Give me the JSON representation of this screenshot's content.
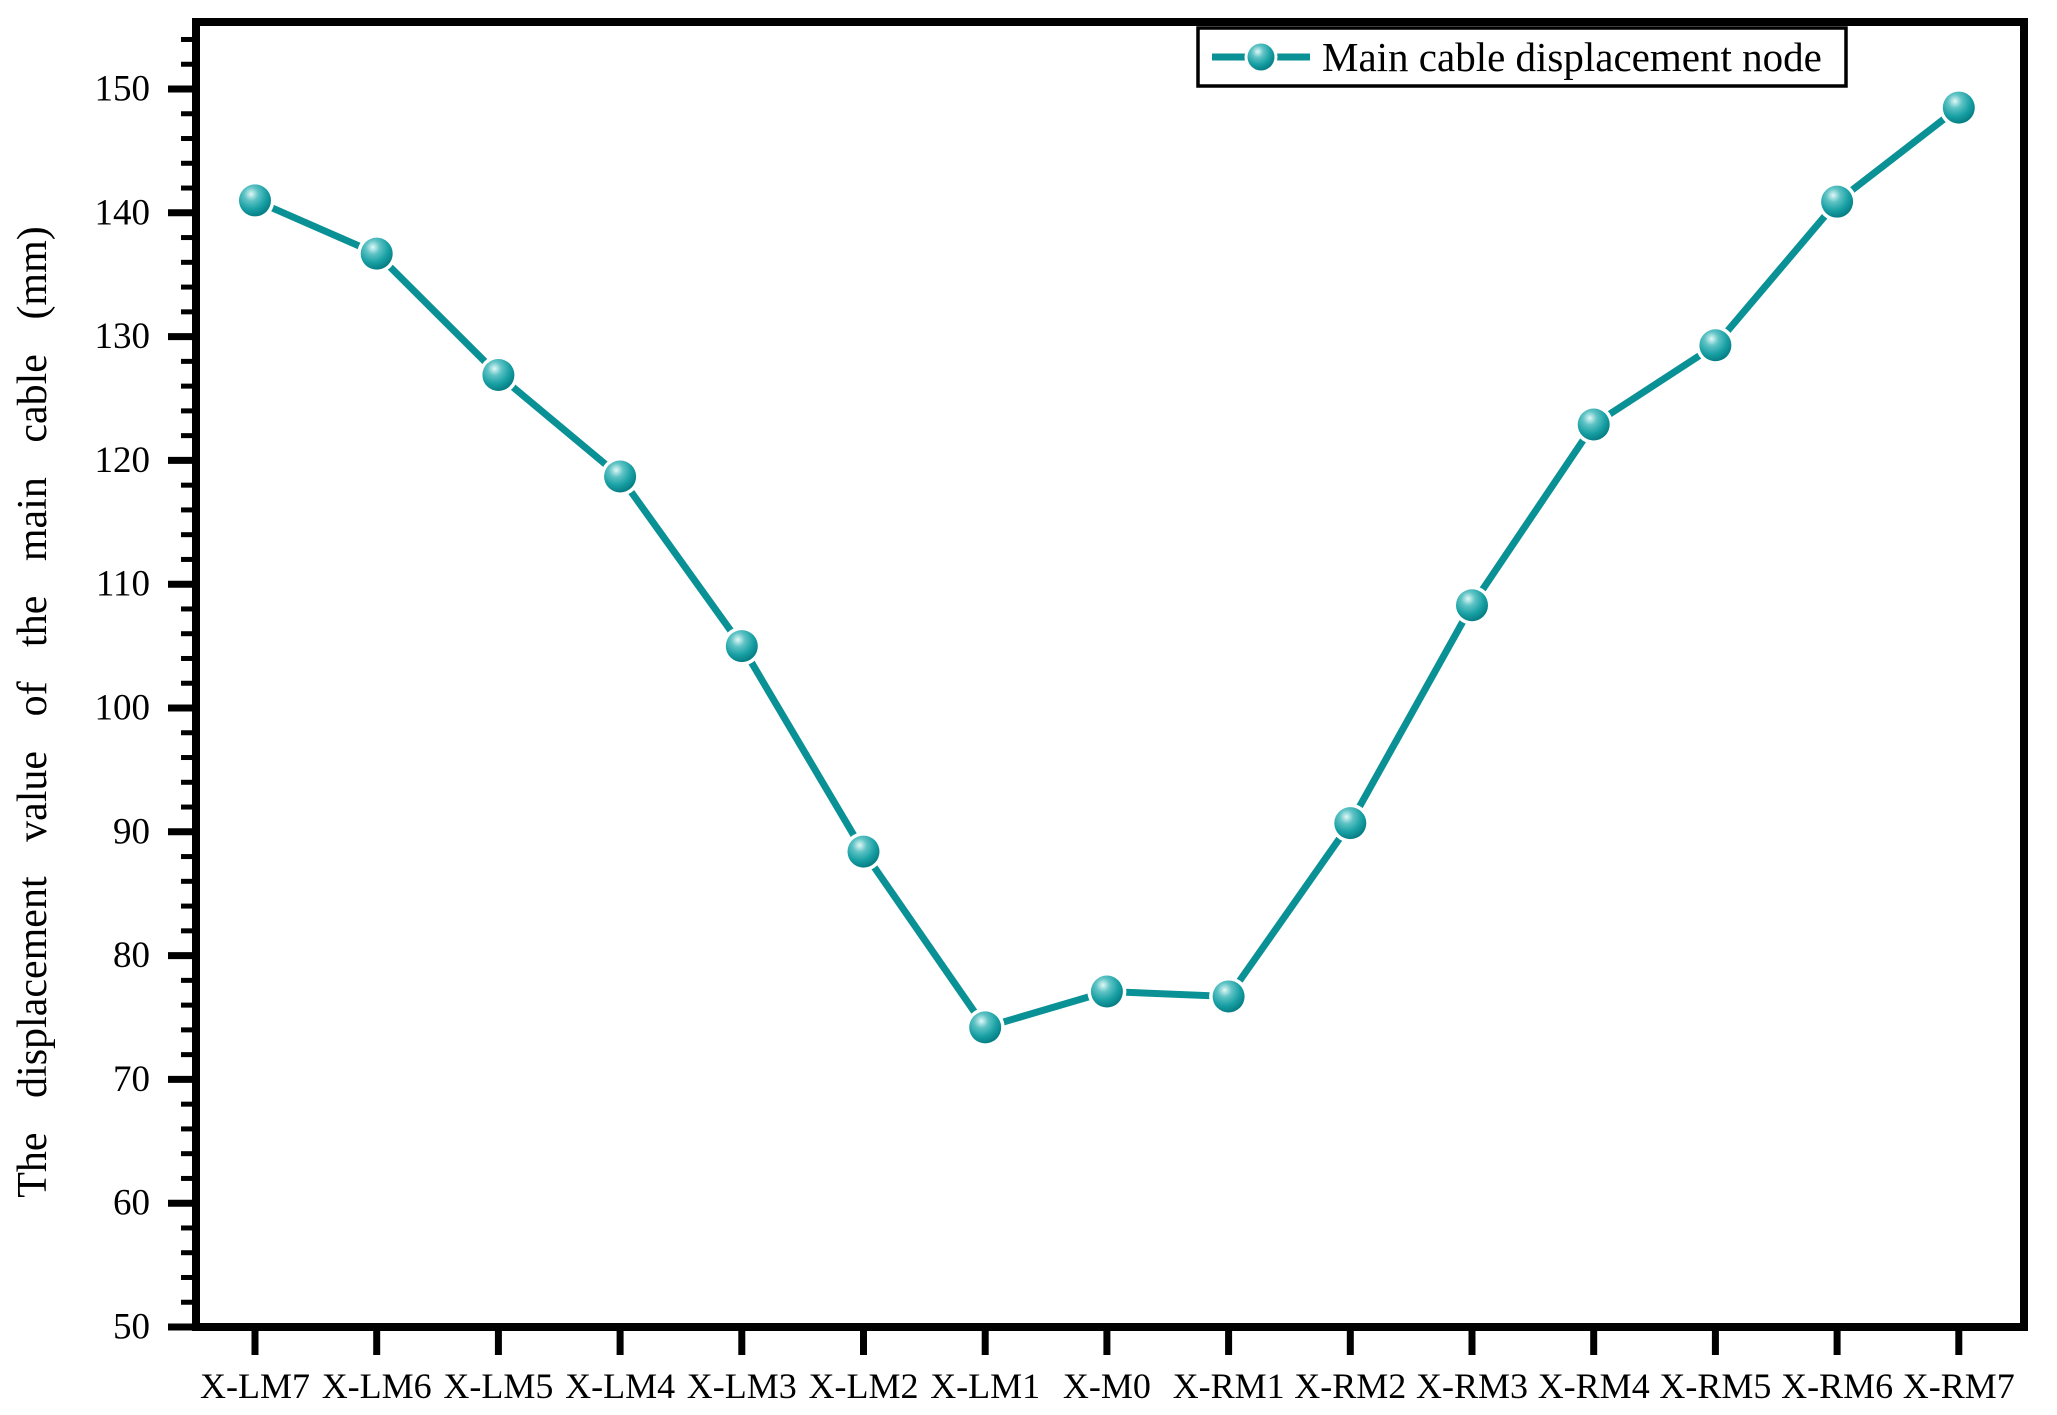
{
  "chart_data": {
    "type": "line",
    "title": "",
    "xlabel": "",
    "ylabel": "The displacement value of the main cable (mm)",
    "categories": [
      "X-LM7",
      "X-LM6",
      "X-LM5",
      "X-LM4",
      "X-LM3",
      "X-LM2",
      "X-LM1",
      "X-M0",
      "X-RM1",
      "X-RM2",
      "X-RM3",
      "X-RM4",
      "X-RM5",
      "X-RM6",
      "X-RM7"
    ],
    "series": [
      {
        "name": "Main cable displacement node",
        "values": [
          141.0,
          136.7,
          126.9,
          118.7,
          105.0,
          88.4,
          74.2,
          77.1,
          76.7,
          90.7,
          108.3,
          122.9,
          129.3,
          140.9,
          148.5
        ]
      }
    ],
    "ylim": [
      50,
      155.4
    ],
    "yticks": [
      50,
      60,
      70,
      80,
      90,
      100,
      110,
      120,
      130,
      140,
      150
    ],
    "y_minor_step": 2,
    "x_minor_ticks": false,
    "grid": false,
    "legend_position": "top-right",
    "legend_entries": [
      "Main cable displacement node"
    ]
  },
  "colors": {
    "line": "#0A9196",
    "marker_light": "#e2f8f7",
    "marker_mid_light": "#5fc3c5",
    "marker_mid": "#18a0a4",
    "marker_dark": "#00737a",
    "axis": "#000000",
    "background": "#ffffff",
    "legend_border": "#000000"
  }
}
